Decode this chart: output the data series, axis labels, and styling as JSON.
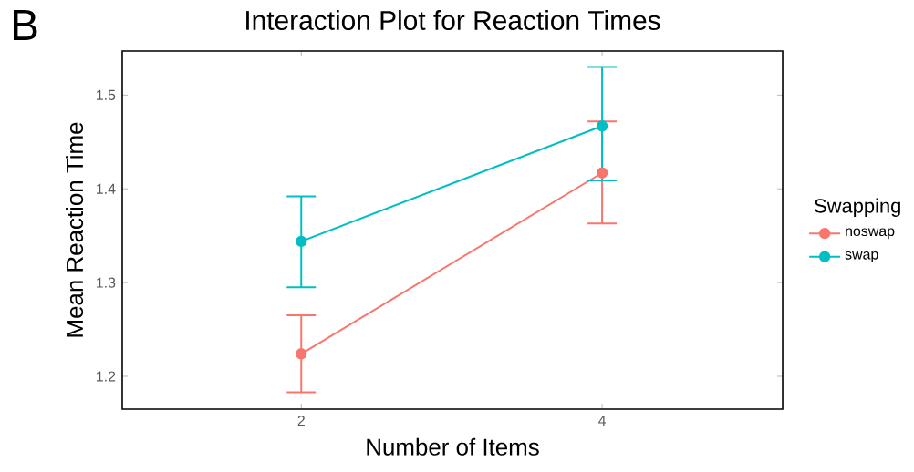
{
  "chart_data": {
    "type": "line",
    "title": "Interaction Plot for Reaction Times",
    "xlabel": "Number of Items",
    "ylabel": "Mean Reaction Time",
    "legend_title": "Swapping",
    "legend": "right",
    "marker": "circle",
    "annotations": [
      "B"
    ],
    "x": [
      2,
      4
    ],
    "xlim": [
      0.81,
      5.2
    ],
    "xticks": [
      2,
      4
    ],
    "ylim": [
      1.165,
      1.547
    ],
    "yticks": [
      1.2,
      1.3,
      1.4,
      1.5
    ],
    "series": [
      {
        "name": "noswap",
        "color": "#f8766d",
        "values": [
          1.224,
          1.417
        ],
        "errors": [
          [
            1.183,
            1.265
          ],
          [
            1.363,
            1.472
          ]
        ]
      },
      {
        "name": "swap",
        "color": "#00bfc4",
        "values": [
          1.344,
          1.467
        ],
        "errors": [
          [
            1.295,
            1.392
          ],
          [
            1.409,
            1.53
          ]
        ]
      }
    ]
  }
}
